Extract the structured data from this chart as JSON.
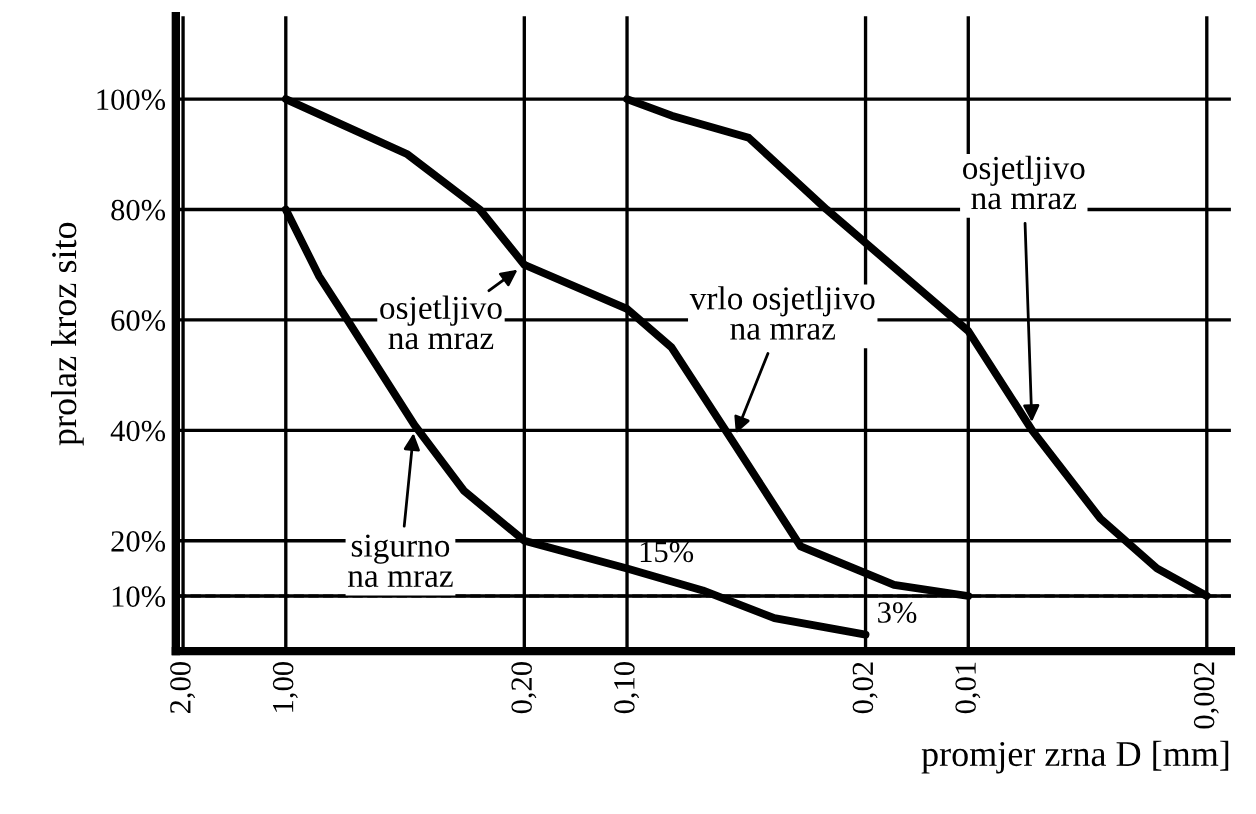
{
  "chart_data": {
    "type": "line",
    "xlabel": "promjer zrna D [mm]",
    "ylabel": "prolaz kroz sito",
    "log": "x",
    "xlim": [
      2.1,
      0.0017
    ],
    "ylim": [
      0,
      115
    ],
    "xticks": [
      {
        "value": 2.0,
        "label": "2,00"
      },
      {
        "value": 1.0,
        "label": "1,00"
      },
      {
        "value": 0.2,
        "label": "0,20"
      },
      {
        "value": 0.1,
        "label": "0,10"
      },
      {
        "value": 0.02,
        "label": "0,02"
      },
      {
        "value": 0.01,
        "label": "0,01"
      },
      {
        "value": 0.002,
        "label": "0,002"
      }
    ],
    "yticks": [
      {
        "value": 10,
        "label": "10%"
      },
      {
        "value": 20,
        "label": "20%"
      },
      {
        "value": 40,
        "label": "40%"
      },
      {
        "value": 60,
        "label": "60%"
      },
      {
        "value": 80,
        "label": "80%"
      },
      {
        "value": 100,
        "label": "100%"
      }
    ],
    "grid": true,
    "marker": "none",
    "line_style": "solid",
    "series": [
      {
        "color": "#000000",
        "x": [
          1.0,
          0.8,
          0.66,
          0.42,
          0.3,
          0.2,
          0.1,
          0.06,
          0.037,
          0.02
        ],
        "values": [
          80,
          68,
          60,
          41,
          29,
          20,
          15,
          11,
          6,
          3
        ]
      },
      {
        "color": "#000000",
        "x": [
          1.0,
          0.44,
          0.27,
          0.2,
          0.1,
          0.074,
          0.049,
          0.031,
          0.0165,
          0.01
        ],
        "values": [
          100,
          90,
          80,
          70,
          62,
          55,
          38,
          19,
          12,
          10
        ]
      },
      {
        "color": "#000000",
        "x": [
          0.1,
          0.074,
          0.044,
          0.026,
          0.01,
          0.0065,
          0.0041,
          0.0028,
          0.002
        ],
        "values": [
          100,
          97,
          93,
          80,
          58,
          40,
          24,
          15,
          10
        ]
      }
    ],
    "ref_lines": [
      {
        "axis": "y",
        "value": 10,
        "line_style": "dashed",
        "color": "#000000"
      }
    ],
    "annotations": [
      {
        "text": "sigurno\nna mraz",
        "x": 0.42,
        "y": 41
      },
      {
        "text": "osjetljivo\nna mraz",
        "x": 0.2,
        "y": 70
      },
      {
        "text": "vrlo osjetljivo\nna mraz",
        "x": 0.049,
        "y": 38
      },
      {
        "text": "osjetljivo\nna mraz",
        "x": 0.0065,
        "y": 40
      },
      {
        "text": "15%",
        "x": 0.1,
        "y": 15
      },
      {
        "text": "3%",
        "x": 0.02,
        "y": 3
      }
    ]
  }
}
